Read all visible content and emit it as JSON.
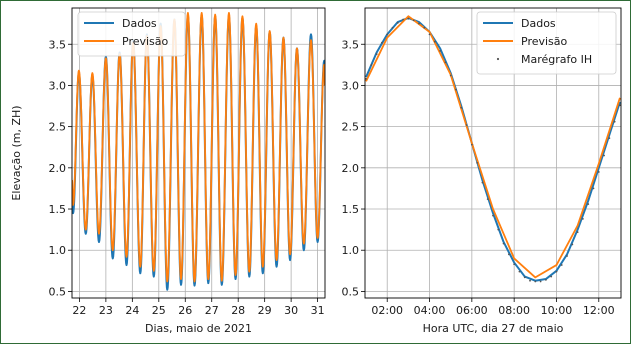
{
  "chart_data": [
    {
      "type": "line",
      "xlabel": "Dias, maio de 2021",
      "ylabel": "Elevação (m, ZH)",
      "x_tick_labels": [
        "22",
        "23",
        "24",
        "25",
        "26",
        "27",
        "28",
        "29",
        "30",
        "31"
      ],
      "x_ticks": [
        22,
        23,
        24,
        25,
        26,
        27,
        28,
        29,
        30,
        31
      ],
      "xlim": [
        21.72,
        31.28
      ],
      "y_tick_labels": [
        "0.5",
        "1.0",
        "1.5",
        "2.0",
        "2.5",
        "3.0",
        "3.5"
      ],
      "y_ticks": [
        0.5,
        1.0,
        1.5,
        2.0,
        2.5,
        3.0,
        3.5
      ],
      "ylim": [
        0.42,
        3.94
      ],
      "grid": true,
      "legend_position": "top-left",
      "colors": {
        "Dados": "#1f77b4",
        "Previsão": "#ff7f0e"
      },
      "series": [
        {
          "name": "Dados",
          "extremes": [
            [
              21.72,
              1.75
            ],
            [
              21.76,
              1.45
            ],
            [
              21.98,
              3.15
            ],
            [
              22.24,
              1.2
            ],
            [
              22.49,
              3.12
            ],
            [
              22.74,
              1.1
            ],
            [
              23.0,
              3.35
            ],
            [
              23.26,
              0.9
            ],
            [
              23.52,
              3.4
            ],
            [
              23.78,
              0.82
            ],
            [
              24.03,
              3.55
            ],
            [
              24.3,
              0.72
            ],
            [
              24.55,
              3.62
            ],
            [
              24.81,
              0.68
            ],
            [
              25.07,
              3.75
            ],
            [
              25.32,
              0.52
            ],
            [
              25.59,
              3.8
            ],
            [
              25.84,
              0.58
            ],
            [
              26.1,
              3.85
            ],
            [
              26.35,
              0.57
            ],
            [
              26.62,
              3.85
            ],
            [
              26.87,
              0.6
            ],
            [
              27.13,
              3.84
            ],
            [
              27.38,
              0.58
            ],
            [
              27.65,
              3.84
            ],
            [
              27.9,
              0.65
            ],
            [
              28.16,
              3.82
            ],
            [
              28.42,
              0.68
            ],
            [
              28.68,
              3.72
            ],
            [
              28.93,
              0.72
            ],
            [
              29.19,
              3.65
            ],
            [
              29.45,
              0.8
            ],
            [
              29.71,
              3.58
            ],
            [
              29.96,
              0.88
            ],
            [
              30.22,
              3.45
            ],
            [
              30.48,
              1.0
            ],
            [
              30.75,
              3.62
            ],
            [
              31.0,
              1.1
            ],
            [
              31.25,
              3.3
            ],
            [
              31.28,
              3.05
            ]
          ]
        },
        {
          "name": "Previsão",
          "extremes": [
            [
              21.72,
              1.85
            ],
            [
              21.76,
              1.55
            ],
            [
              21.98,
              3.18
            ],
            [
              22.24,
              1.25
            ],
            [
              22.49,
              3.15
            ],
            [
              22.74,
              1.2
            ],
            [
              23.0,
              3.33
            ],
            [
              23.26,
              1.0
            ],
            [
              23.52,
              3.38
            ],
            [
              23.78,
              0.92
            ],
            [
              24.03,
              3.52
            ],
            [
              24.3,
              0.8
            ],
            [
              24.55,
              3.6
            ],
            [
              24.81,
              0.75
            ],
            [
              25.07,
              3.72
            ],
            [
              25.32,
              0.62
            ],
            [
              25.59,
              3.8
            ],
            [
              25.84,
              0.65
            ],
            [
              26.1,
              3.88
            ],
            [
              26.35,
              0.62
            ],
            [
              26.62,
              3.88
            ],
            [
              26.87,
              0.65
            ],
            [
              27.13,
              3.86
            ],
            [
              27.38,
              0.63
            ],
            [
              27.65,
              3.88
            ],
            [
              27.9,
              0.7
            ],
            [
              28.16,
              3.84
            ],
            [
              28.42,
              0.74
            ],
            [
              28.68,
              3.75
            ],
            [
              28.93,
              0.8
            ],
            [
              29.19,
              3.66
            ],
            [
              29.45,
              0.88
            ],
            [
              29.71,
              3.58
            ],
            [
              29.96,
              0.95
            ],
            [
              30.22,
              3.45
            ],
            [
              30.48,
              1.08
            ],
            [
              30.75,
              3.55
            ],
            [
              31.0,
              1.15
            ],
            [
              31.25,
              3.25
            ],
            [
              31.28,
              3.0
            ]
          ]
        }
      ]
    },
    {
      "type": "line",
      "xlabel": "Hora UTC, dia 27 de maio",
      "ylabel": "",
      "x_tick_labels": [
        "02:00",
        "04:00",
        "06:00",
        "08:00",
        "10:00",
        "12:00"
      ],
      "x_ticks": [
        2,
        4,
        6,
        8,
        10,
        12
      ],
      "xlim": [
        0.95,
        13.05
      ],
      "y_tick_labels": [
        "0.5",
        "1.0",
        "1.5",
        "2.0",
        "2.5",
        "3.0",
        "3.5"
      ],
      "y_ticks": [
        0.5,
        1.0,
        1.5,
        2.0,
        2.5,
        3.0,
        3.5
      ],
      "ylim": [
        0.42,
        3.94
      ],
      "grid": true,
      "legend_position": "top-right",
      "colors": {
        "Dados": "#1f77b4",
        "Previsão": "#ff7f0e",
        "Marégrafo IH": "#555555"
      },
      "series": [
        {
          "name": "Dados",
          "x": [
            1.0,
            1.5,
            2.0,
            2.5,
            3.0,
            3.5,
            4.0,
            4.5,
            5.0,
            5.5,
            6.0,
            6.5,
            7.0,
            7.5,
            8.0,
            8.5,
            9.0,
            9.5,
            10.0,
            10.5,
            11.0,
            11.5,
            12.0,
            12.5,
            13.0
          ],
          "y": [
            3.1,
            3.4,
            3.62,
            3.77,
            3.82,
            3.77,
            3.65,
            3.45,
            3.15,
            2.75,
            2.3,
            1.85,
            1.45,
            1.1,
            0.85,
            0.68,
            0.63,
            0.65,
            0.75,
            0.95,
            1.25,
            1.6,
            2.0,
            2.4,
            2.8
          ]
        },
        {
          "name": "Previsão",
          "x": [
            1.0,
            2.0,
            3.0,
            4.0,
            5.0,
            6.0,
            7.0,
            8.0,
            9.0,
            10.0,
            11.0,
            12.0,
            13.0
          ],
          "y": [
            3.05,
            3.58,
            3.84,
            3.65,
            3.13,
            2.3,
            1.5,
            0.9,
            0.67,
            0.82,
            1.3,
            2.05,
            2.85
          ]
        },
        {
          "name": "Marégrafo IH",
          "x": [
            1.0,
            1.25,
            1.5,
            1.75,
            2.0,
            2.25,
            2.5,
            2.75,
            3.0,
            3.25,
            3.5,
            3.75,
            4.0,
            4.25,
            4.5,
            4.75,
            5.0,
            5.25,
            5.5,
            5.75,
            6.0,
            6.25,
            6.5,
            6.75,
            7.0,
            7.25,
            7.5,
            7.75,
            8.0,
            8.25,
            8.5,
            8.75,
            9.0,
            9.25,
            9.5,
            9.75,
            10.0,
            10.25,
            10.5,
            10.75,
            11.0,
            11.25,
            11.5,
            11.75,
            12.0,
            12.25,
            12.5,
            12.75,
            13.0
          ],
          "y": [
            3.08,
            3.25,
            3.38,
            3.52,
            3.62,
            3.7,
            3.76,
            3.8,
            3.81,
            3.79,
            3.75,
            3.7,
            3.62,
            3.53,
            3.42,
            3.28,
            3.12,
            2.95,
            2.73,
            2.52,
            2.28,
            2.06,
            1.82,
            1.62,
            1.42,
            1.25,
            1.08,
            0.95,
            0.83,
            0.74,
            0.67,
            0.63,
            0.62,
            0.62,
            0.64,
            0.68,
            0.74,
            0.82,
            0.93,
            1.07,
            1.22,
            1.38,
            1.56,
            1.75,
            1.95,
            2.15,
            2.36,
            2.56,
            2.76
          ]
        }
      ]
    }
  ]
}
